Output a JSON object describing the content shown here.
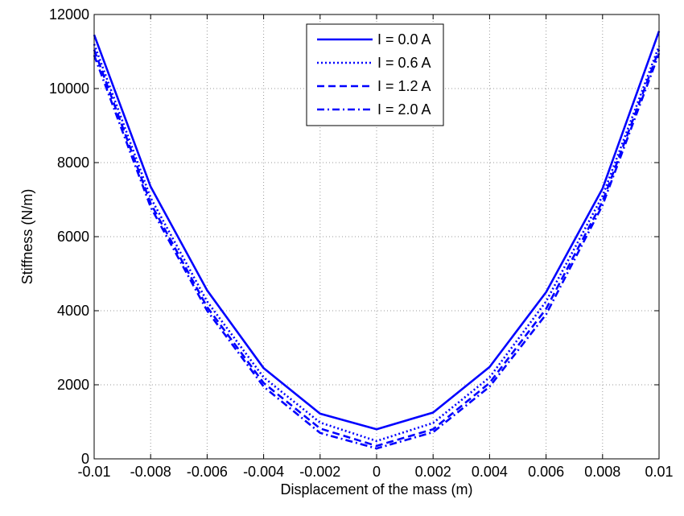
{
  "chart_data": {
    "type": "line",
    "title": "",
    "xlabel": "Displacement of the mass (m)",
    "ylabel": "Stiffness (N/m)",
    "xlim": [
      -0.01,
      0.01
    ],
    "ylim": [
      0,
      12000
    ],
    "grid": true,
    "legend_position": "top-center",
    "x_ticks": [
      -0.01,
      -0.008,
      -0.006,
      -0.004,
      -0.002,
      0,
      0.002,
      0.004,
      0.006,
      0.008,
      0.01
    ],
    "x_tick_labels": [
      "-0.01",
      "-0.008",
      "-0.006",
      "-0.004",
      "-0.002",
      "0",
      "0.002",
      "0.004",
      "0.006",
      "0.008",
      "0.01"
    ],
    "y_ticks": [
      0,
      2000,
      4000,
      6000,
      8000,
      10000,
      12000
    ],
    "y_tick_labels": [
      "0",
      "2000",
      "4000",
      "6000",
      "8000",
      "10000",
      "12000"
    ],
    "x": [
      -0.01,
      -0.008,
      -0.006,
      -0.004,
      -0.002,
      0,
      0.002,
      0.004,
      0.006,
      0.008,
      0.01
    ],
    "series": [
      {
        "name": "I = 0.0 A",
        "style": "solid",
        "color": "#0000ff",
        "values": [
          11450,
          7350,
          4550,
          2450,
          1220,
          800,
          1250,
          2480,
          4500,
          7300,
          11550
        ]
      },
      {
        "name": "I = 0.6 A",
        "style": "dotted",
        "color": "#0000ff",
        "values": [
          11200,
          7050,
          4250,
          2200,
          980,
          480,
          970,
          2200,
          4250,
          7100,
          11150
        ]
      },
      {
        "name": "I = 1.2 A",
        "style": "dashed",
        "color": "#0000ff",
        "values": [
          11050,
          6900,
          4100,
          2050,
          820,
          350,
          800,
          2050,
          4050,
          6950,
          11050
        ]
      },
      {
        "name": "I = 2.0 A",
        "style": "dashdot",
        "color": "#0000ff",
        "values": [
          10900,
          6800,
          4000,
          1950,
          700,
          280,
          720,
          1950,
          3900,
          6850,
          10950
        ]
      }
    ]
  }
}
